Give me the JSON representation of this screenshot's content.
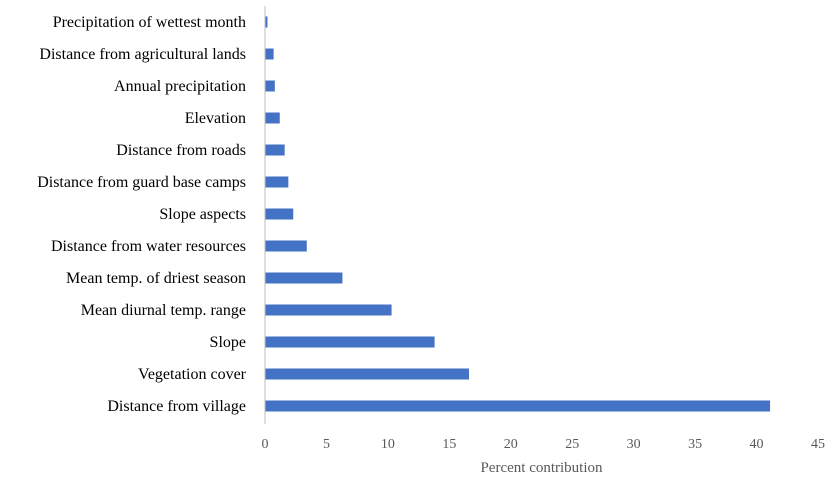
{
  "chart_data": {
    "type": "bar",
    "orientation": "horizontal",
    "categories": [
      "Precipitation of wettest month",
      "Distance from agricultural lands",
      "Annual precipitation",
      "Elevation",
      "Distance from roads",
      "Distance from guard base camps",
      "Slope aspects",
      "Distance from water resources",
      "Mean temp. of driest season",
      "Mean diurnal temp. range",
      "Slope",
      "Vegetation cover",
      "Distance from village"
    ],
    "values": [
      0.2,
      0.7,
      0.8,
      1.2,
      1.6,
      1.9,
      2.3,
      3.4,
      6.3,
      10.3,
      13.8,
      16.6,
      41.1
    ],
    "title": "",
    "xlabel": "Percent contribution",
    "ylabel": "",
    "xlim": [
      0,
      45
    ],
    "xticks": [
      0,
      5,
      10,
      15,
      20,
      25,
      30,
      35,
      40,
      45
    ],
    "grid": false,
    "legend": "none",
    "bar_color": "#4472C4",
    "axis_color": "#BFBFBF"
  }
}
